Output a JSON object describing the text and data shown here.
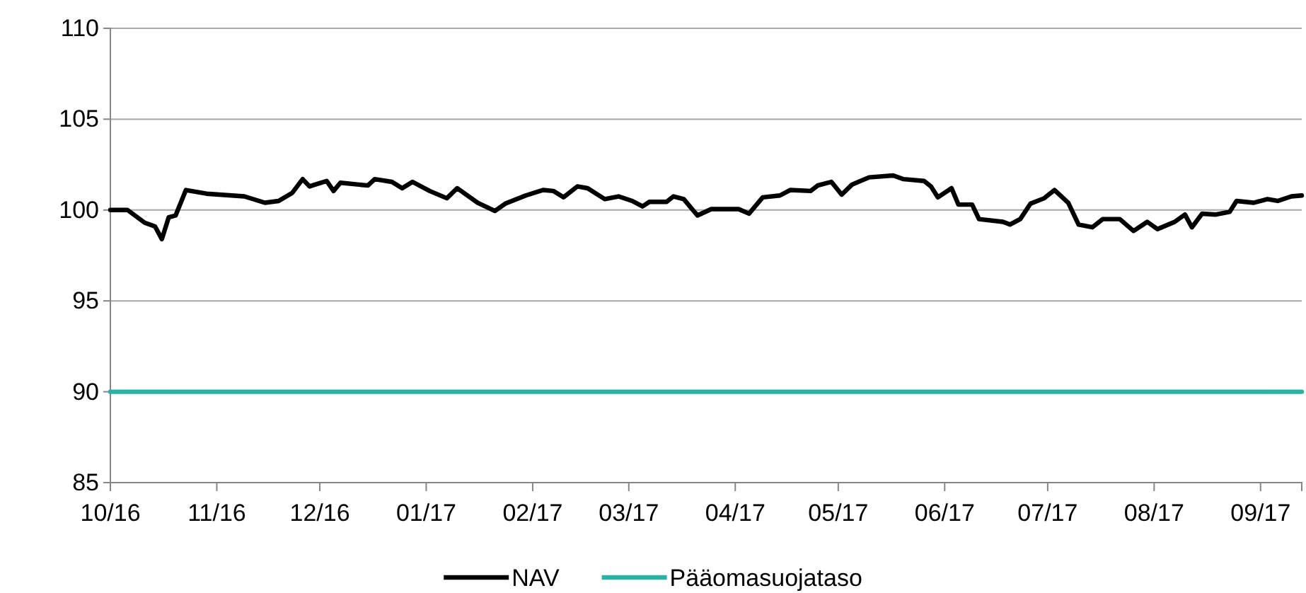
{
  "chart_data": {
    "type": "line",
    "xlim": [
      "2016-10-01",
      "2017-09-13"
    ],
    "xticks": [
      {
        "value": "2016-10-01",
        "label": "10/16"
      },
      {
        "value": "2016-11-01",
        "label": "11/16"
      },
      {
        "value": "2016-12-01",
        "label": "12/16"
      },
      {
        "value": "2017-01-01",
        "label": "01/17"
      },
      {
        "value": "2017-02-01",
        "label": "02/17"
      },
      {
        "value": "2017-03-01",
        "label": "03/17"
      },
      {
        "value": "2017-04-01",
        "label": "04/17"
      },
      {
        "value": "2017-05-01",
        "label": "05/17"
      },
      {
        "value": "2017-06-01",
        "label": "06/17"
      },
      {
        "value": "2017-07-01",
        "label": "07/17"
      },
      {
        "value": "2017-08-01",
        "label": "08/17"
      },
      {
        "value": "2017-09-01",
        "label": "09/17"
      }
    ],
    "ylim": [
      85,
      110
    ],
    "yticks": [
      85,
      90,
      95,
      100,
      105,
      110
    ],
    "grid": "y",
    "legend": "bottom",
    "marker": "none",
    "line_style": "solid",
    "series": [
      {
        "name": "NAV",
        "color": "#000000",
        "x": [
          "2016-10-01",
          "2016-10-06",
          "2016-10-11",
          "2016-10-14",
          "2016-10-16",
          "2016-10-18",
          "2016-10-20",
          "2016-10-23",
          "2016-10-29",
          "2016-11-09",
          "2016-11-15",
          "2016-11-19",
          "2016-11-23",
          "2016-11-26",
          "2016-11-28",
          "2016-12-03",
          "2016-12-05",
          "2016-12-07",
          "2016-12-15",
          "2016-12-17",
          "2016-12-22",
          "2016-12-25",
          "2016-12-28",
          "2017-01-02",
          "2017-01-07",
          "2017-01-10",
          "2017-01-16",
          "2017-01-21",
          "2017-01-24",
          "2017-01-30",
          "2017-02-04",
          "2017-02-07",
          "2017-02-10",
          "2017-02-14",
          "2017-02-17",
          "2017-02-22",
          "2017-02-26",
          "2017-03-02",
          "2017-03-05",
          "2017-03-07",
          "2017-03-12",
          "2017-03-14",
          "2017-03-17",
          "2017-03-21",
          "2017-03-25",
          "2017-04-02",
          "2017-04-05",
          "2017-04-09",
          "2017-04-14",
          "2017-04-17",
          "2017-04-23",
          "2017-04-25",
          "2017-04-29",
          "2017-05-02",
          "2017-05-05",
          "2017-05-10",
          "2017-05-17",
          "2017-05-20",
          "2017-05-26",
          "2017-05-28",
          "2017-05-30",
          "2017-06-03",
          "2017-06-05",
          "2017-06-09",
          "2017-06-11",
          "2017-06-18",
          "2017-06-20",
          "2017-06-23",
          "2017-06-26",
          "2017-06-30",
          "2017-07-03",
          "2017-07-07",
          "2017-07-10",
          "2017-07-14",
          "2017-07-17",
          "2017-07-22",
          "2017-07-26",
          "2017-07-30",
          "2017-08-02",
          "2017-08-07",
          "2017-08-10",
          "2017-08-12",
          "2017-08-15",
          "2017-08-19",
          "2017-08-23",
          "2017-08-25",
          "2017-08-30",
          "2017-09-03",
          "2017-09-06",
          "2017-09-10",
          "2017-09-13"
        ],
        "values": [
          100.0,
          100.0,
          99.3,
          99.1,
          98.4,
          99.6,
          99.7,
          101.1,
          100.9,
          100.75,
          100.4,
          100.5,
          100.95,
          101.7,
          101.3,
          101.6,
          101.05,
          101.5,
          101.35,
          101.7,
          101.55,
          101.2,
          101.55,
          101.05,
          100.65,
          101.2,
          100.4,
          99.95,
          100.35,
          100.8,
          101.1,
          101.05,
          100.7,
          101.3,
          101.2,
          100.6,
          100.75,
          100.5,
          100.2,
          100.45,
          100.45,
          100.75,
          100.6,
          99.7,
          100.05,
          100.05,
          99.8,
          100.7,
          100.8,
          101.1,
          101.05,
          101.35,
          101.55,
          100.85,
          101.4,
          101.8,
          101.9,
          101.7,
          101.6,
          101.3,
          100.7,
          101.2,
          100.3,
          100.3,
          99.5,
          99.35,
          99.2,
          99.5,
          100.35,
          100.65,
          101.1,
          100.4,
          99.2,
          99.05,
          99.5,
          99.5,
          98.85,
          99.35,
          98.95,
          99.35,
          99.75,
          99.05,
          99.8,
          99.75,
          99.9,
          100.5,
          100.4,
          100.6,
          100.5,
          100.75,
          100.8
        ]
      },
      {
        "name": "Pääomasuojataso",
        "color": "#2ab3a3",
        "x": [
          "2016-10-01",
          "2017-09-13"
        ],
        "values": [
          90,
          90
        ]
      }
    ]
  }
}
